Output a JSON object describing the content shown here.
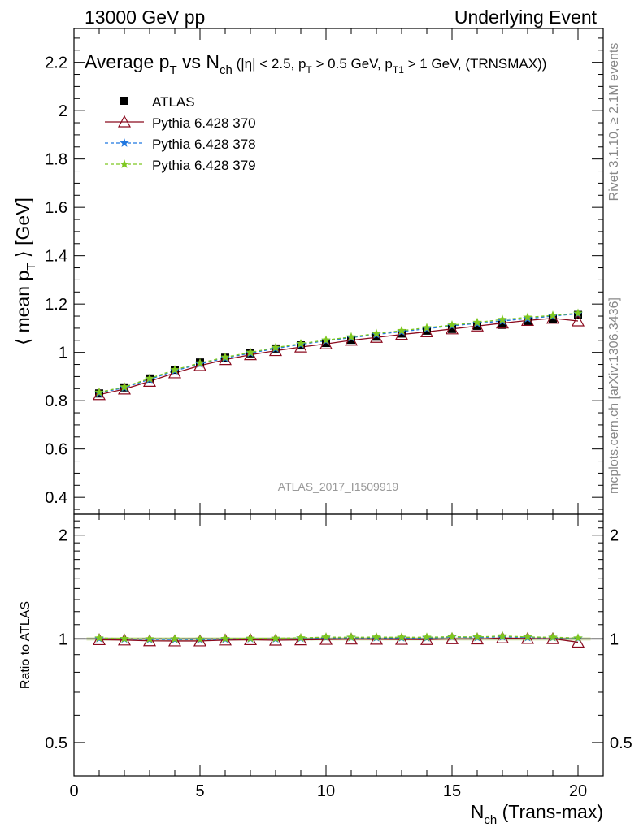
{
  "header": {
    "left": "13000 GeV pp",
    "right": "Underlying Event"
  },
  "side_labels": {
    "upper": "Rivet 3.1.10, ≥ 2.1M events",
    "lower": "mcplots.cern.ch [arXiv:1306.3436]"
  },
  "watermark": "ATLAS_2017_I1509919",
  "title": {
    "main_pre": "Average p",
    "main_sub1": "T",
    "main_mid": " vs N",
    "main_sub2": "ch",
    "cut_pre": " (|η| < 2.5, p",
    "cut_sub1": "T",
    "cut_mid": " > 0.5 GeV, p",
    "cut_sub2": "T1",
    "cut_post": " > 1 GeV, (TRNSMAX))"
  },
  "ylabel_main": {
    "pre": "⟨ mean p",
    "sub": "T",
    "post": " ⟩ [GeV]"
  },
  "ylabel_ratio": "Ratio to ATLAS",
  "xlabel": {
    "pre": "N",
    "sub": "ch",
    "post": " (Trans-max)"
  },
  "legend": [
    {
      "label": "ATLAS",
      "marker": "square",
      "color": "#000000"
    },
    {
      "label": "Pythia 6.428 370",
      "marker": "triangle",
      "color": "#8b0a1e"
    },
    {
      "label": "Pythia 6.428 378",
      "marker": "star",
      "color": "#1f77e0"
    },
    {
      "label": "Pythia 6.428 379",
      "marker": "star",
      "color": "#7ec820"
    }
  ],
  "chart_data": {
    "type": "line",
    "x": [
      1,
      2,
      3,
      4,
      5,
      6,
      7,
      8,
      9,
      10,
      11,
      12,
      13,
      14,
      15,
      16,
      17,
      18,
      19,
      20
    ],
    "xlim": [
      0,
      21
    ],
    "ylim": [
      0.33,
      2.34
    ],
    "yticks": [
      0.4,
      0.6,
      0.8,
      1,
      1.2,
      1.4,
      1.6,
      1.8,
      2,
      2.2
    ],
    "xticks": [
      0,
      5,
      10,
      15,
      20
    ],
    "series": [
      {
        "name": "ATLAS",
        "values": [
          0.83,
          0.855,
          0.892,
          0.928,
          0.958,
          0.978,
          0.996,
          1.016,
          1.029,
          1.039,
          1.052,
          1.065,
          1.078,
          1.09,
          1.097,
          1.11,
          1.114,
          1.13,
          1.14,
          1.155
        ]
      },
      {
        "name": "Pythia 6.428 370",
        "values": [
          0.825,
          0.848,
          0.88,
          0.915,
          0.945,
          0.97,
          0.99,
          1.007,
          1.022,
          1.035,
          1.05,
          1.062,
          1.074,
          1.085,
          1.097,
          1.109,
          1.121,
          1.132,
          1.141,
          1.13
        ]
      },
      {
        "name": "Pythia 6.428 378",
        "values": [
          0.832,
          0.854,
          0.888,
          0.924,
          0.952,
          0.976,
          0.997,
          1.016,
          1.033,
          1.048,
          1.061,
          1.074,
          1.086,
          1.098,
          1.11,
          1.12,
          1.13,
          1.14,
          1.15,
          1.16
        ]
      },
      {
        "name": "Pythia 6.428 379",
        "values": [
          0.835,
          0.857,
          0.892,
          0.928,
          0.956,
          0.98,
          1.0,
          1.02,
          1.036,
          1.051,
          1.064,
          1.078,
          1.09,
          1.102,
          1.113,
          1.124,
          1.136,
          1.145,
          1.153,
          1.162
        ]
      }
    ],
    "ratio": {
      "ylim": [
        0.4,
        2.3
      ],
      "yticks": [
        0.5,
        1,
        2
      ],
      "series": [
        {
          "name": "Pythia 6.428 370",
          "values": [
            0.994,
            0.992,
            0.987,
            0.986,
            0.986,
            0.992,
            0.994,
            0.991,
            0.993,
            0.996,
            0.998,
            0.997,
            0.996,
            0.995,
            1.0,
            0.999,
            1.006,
            1.002,
            1.001,
            0.978
          ]
        },
        {
          "name": "Pythia 6.428 378",
          "values": [
            1.002,
            0.999,
            0.996,
            0.996,
            0.994,
            0.998,
            1.001,
            1.0,
            1.004,
            1.009,
            1.009,
            1.008,
            1.007,
            1.007,
            1.012,
            1.009,
            1.014,
            1.009,
            1.009,
            1.004
          ]
        },
        {
          "name": "Pythia 6.428 379",
          "values": [
            1.006,
            1.002,
            1.0,
            1.0,
            0.998,
            1.002,
            1.004,
            1.004,
            1.007,
            1.012,
            1.011,
            1.012,
            1.011,
            1.011,
            1.015,
            1.013,
            1.02,
            1.013,
            1.011,
            1.006
          ]
        }
      ]
    }
  }
}
